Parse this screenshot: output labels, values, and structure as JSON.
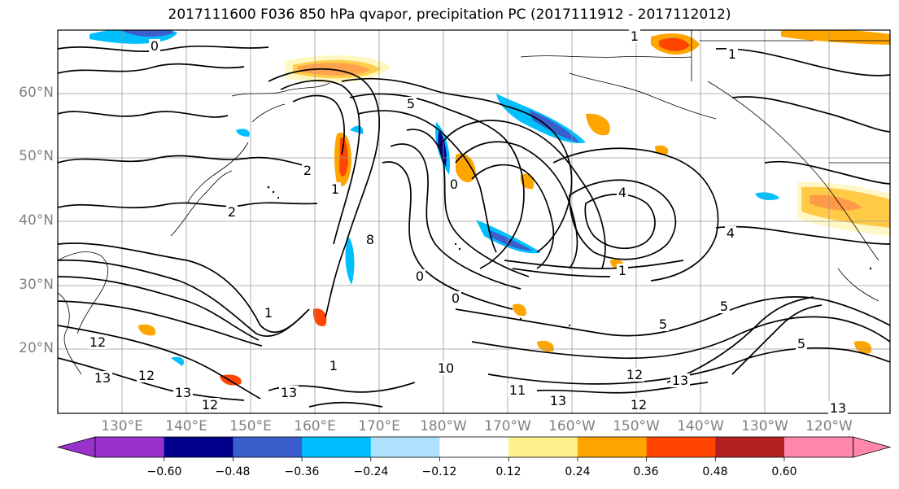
{
  "title": "2017111600 F036 850 hPa qvapor, precipitation PC (2017111912 - 2017112012)",
  "lat_labels": [
    "60°N",
    "50°N",
    "40°N",
    "30°N",
    "20°N"
  ],
  "lon_labels": [
    "130°E",
    "140°E",
    "150°E",
    "160°E",
    "170°E",
    "180°W",
    "170°W",
    "160°W",
    "150°W",
    "140°W",
    "130°W",
    "120°W"
  ],
  "colorbar": {
    "ticks": [
      "−0.60",
      "−0.48",
      "−0.36",
      "−0.24",
      "−0.12",
      "0.12",
      "0.24",
      "0.36",
      "0.48",
      "0.60"
    ],
    "colors": [
      "#9932cc",
      "#00008b",
      "#3a5fcd",
      "#00bfff",
      "#b0e2ff",
      "#ffffff",
      "#fff08c",
      "#ffa500",
      "#ff4500",
      "#b22222",
      "#ff88aa"
    ]
  },
  "contour_labels": [
    "1",
    "0",
    "5",
    "1",
    "2",
    "1",
    "2",
    "0",
    "4",
    "4",
    "1",
    "5",
    "1",
    "8",
    "0",
    "0",
    "5",
    "12",
    "13",
    "12",
    "13",
    "13",
    "10",
    "11",
    "13",
    "12",
    "12",
    "13",
    "13",
    "12",
    "5",
    "1"
  ]
}
